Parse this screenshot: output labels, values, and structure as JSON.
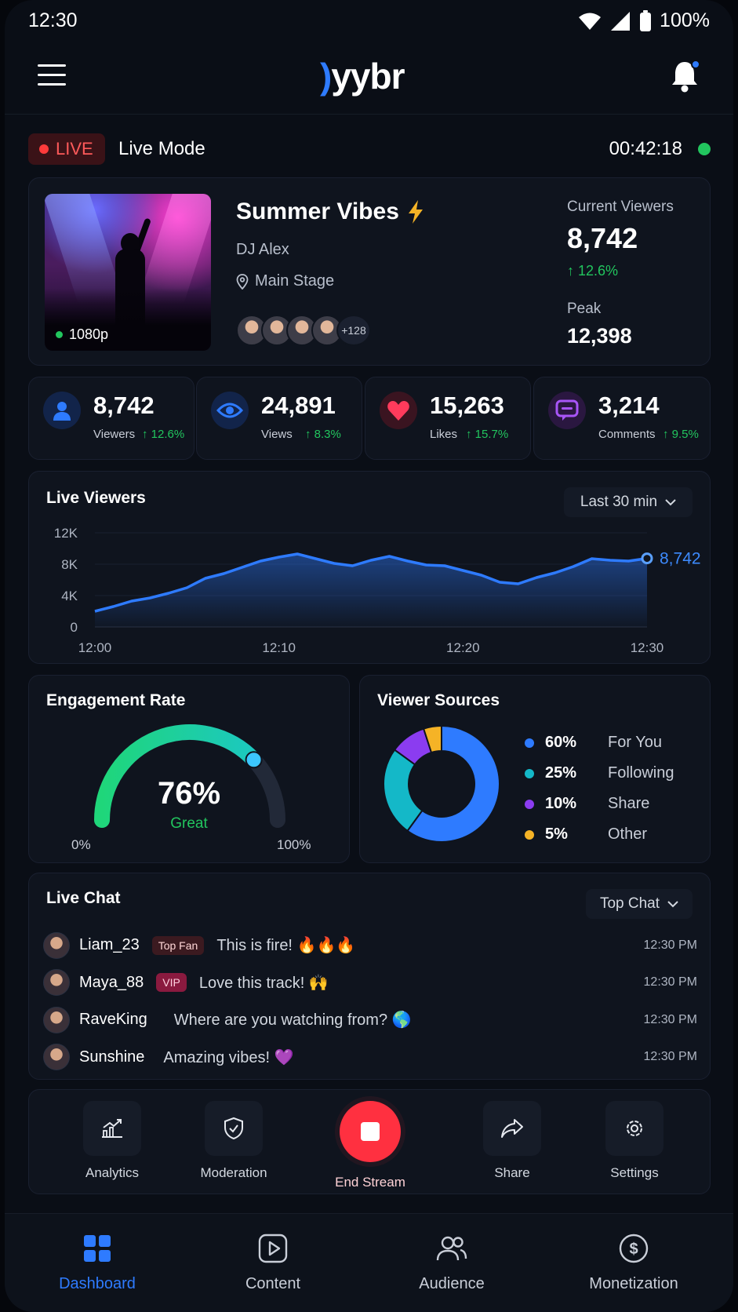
{
  "status_bar": {
    "time": "12:30",
    "battery": "100%"
  },
  "header": {
    "logo_mark": ")",
    "logo_text": "yybr"
  },
  "live_bar": {
    "badge": "LIVE",
    "mode": "Live Mode",
    "timer": "00:42:18"
  },
  "stream": {
    "title": "Summer Vibes",
    "host": "DJ Alex",
    "location": "Main Stage",
    "resolution": "1080p",
    "extra_avatars": "+128",
    "current_viewers_label": "Current Viewers",
    "current_viewers": "8,742",
    "current_change": "↑ 12.6%",
    "peak_label": "Peak",
    "peak": "12,398"
  },
  "stats": [
    {
      "value": "8,742",
      "label": "Viewers",
      "change": "↑ 12.6%",
      "icon": "user-icon",
      "color": "#2e7bff"
    },
    {
      "value": "24,891",
      "label": "Views",
      "change": "↑ 8.3%",
      "icon": "eye-icon",
      "color": "#2e7bff"
    },
    {
      "value": "15,263",
      "label": "Likes",
      "change": "↑ 15.7%",
      "icon": "heart-icon",
      "color": "#ff3b5c"
    },
    {
      "value": "3,214",
      "label": "Comments",
      "change": "↑ 9.5%",
      "icon": "chat-bubble-icon",
      "color": "#a855f7"
    }
  ],
  "live_viewers": {
    "title": "Live Viewers",
    "range": "Last 30 min",
    "current_label": "8,742"
  },
  "chart_data": {
    "type": "area",
    "title": "Live Viewers",
    "xlabel": "",
    "ylabel": "",
    "x_ticks": [
      "12:00",
      "12:10",
      "12:20",
      "12:30"
    ],
    "y_ticks": [
      "0",
      "4K",
      "8K",
      "12K"
    ],
    "ylim": [
      0,
      12000
    ],
    "xlim": [
      0,
      30
    ],
    "series": [
      {
        "color": "#2e7bff",
        "x": [
          0,
          1,
          2,
          3,
          4,
          5,
          6,
          7,
          8,
          9,
          10,
          11,
          12,
          13,
          14,
          15,
          16,
          17,
          18,
          19,
          20,
          21,
          22,
          23,
          24,
          25,
          26,
          27,
          28,
          29,
          30
        ],
        "y": [
          2000,
          2600,
          3300,
          3700,
          4300,
          5000,
          6200,
          6800,
          7600,
          8400,
          8900,
          9300,
          8700,
          8100,
          7800,
          8500,
          9000,
          8400,
          7900,
          7800,
          7200,
          6600,
          5700,
          5500,
          6300,
          6900,
          7700,
          8700,
          8500,
          8400,
          8742
        ]
      }
    ],
    "grid": true
  },
  "engagement": {
    "title": "Engagement Rate",
    "value": "76%",
    "rating": "Great",
    "min": "0%",
    "max": "100%",
    "fraction": 0.76
  },
  "sources": {
    "title": "Viewer Sources",
    "items": [
      {
        "pct": "60%",
        "name": "For You",
        "color": "#2e7bff",
        "value": 60
      },
      {
        "pct": "25%",
        "name": "Following",
        "color": "#14b8c8",
        "value": 25
      },
      {
        "pct": "10%",
        "name": "Share",
        "color": "#8b3cf0",
        "value": 10
      },
      {
        "pct": "5%",
        "name": "Other",
        "color": "#f5b326",
        "value": 5
      }
    ]
  },
  "chat": {
    "title": "Live Chat",
    "filter": "Top Chat",
    "messages": [
      {
        "user": "Liam_23",
        "badge": "Top Fan",
        "text": "This is fire! 🔥🔥🔥",
        "time": "12:30 PM"
      },
      {
        "user": "Maya_88",
        "badge": "VIP",
        "text": "Love this track! 🙌",
        "time": "12:30 PM"
      },
      {
        "user": "RaveKing",
        "badge": "",
        "text": "Where are you watching from? 🌎",
        "time": "12:30 PM"
      },
      {
        "user": "Sunshine",
        "badge": "",
        "text": "Amazing vibes! 💜",
        "time": "12:30 PM"
      }
    ]
  },
  "actions": {
    "analytics": "Analytics",
    "moderation": "Moderation",
    "end_stream": "End Stream",
    "share": "Share",
    "settings": "Settings"
  },
  "nav": {
    "dashboard": "Dashboard",
    "content": "Content",
    "audience": "Audience",
    "monetization": "Monetization"
  }
}
